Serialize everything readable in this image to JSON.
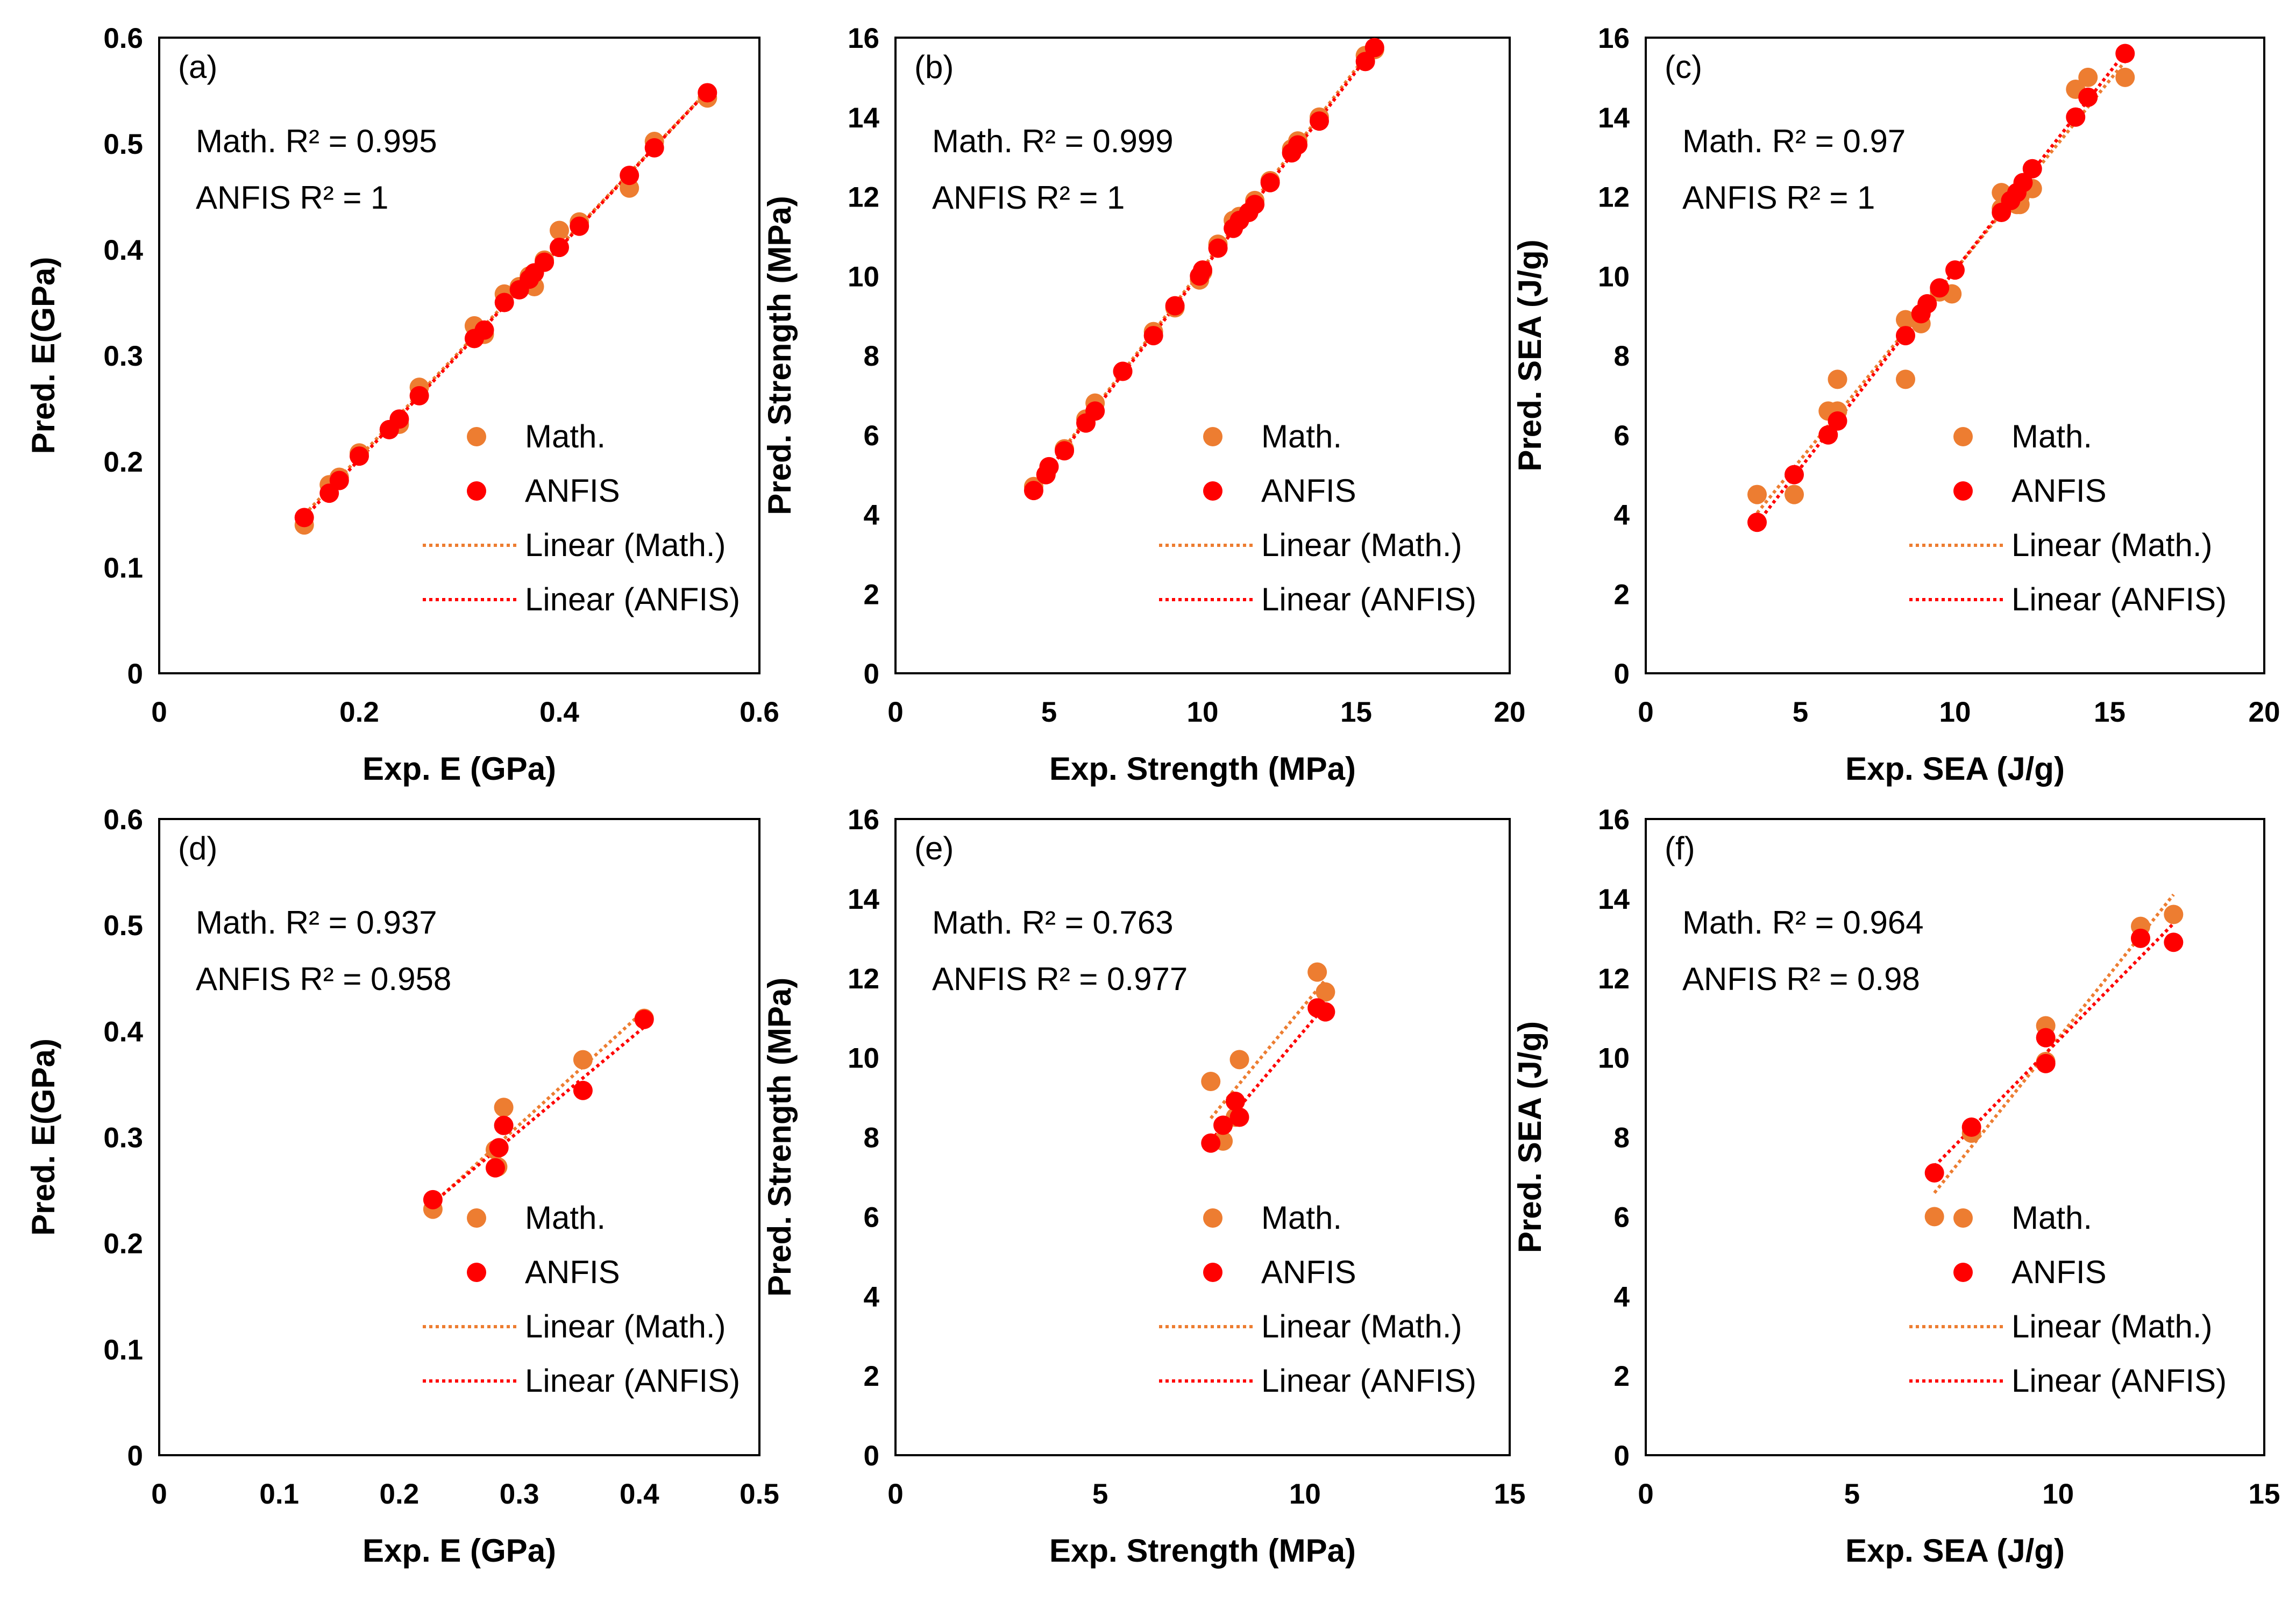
{
  "colors": {
    "math": "#ED7D31",
    "anfis": "#FF0000",
    "trend_math": "#ED7D31",
    "trend_anfis": "#FF0000"
  },
  "chart_data": [
    {
      "panel": "(a)",
      "type": "scatter",
      "xlabel": "Exp. E (GPa)",
      "ylabel": "Pred. E(GPa)",
      "xlim": [
        0,
        0.6
      ],
      "ylim": [
        0,
        0.6
      ],
      "xticks": [
        "0",
        "0.2",
        "0.4",
        "0.6"
      ],
      "yticks": [
        "0",
        "0.1",
        "0.2",
        "0.3",
        "0.4",
        "0.5",
        "0.6"
      ],
      "annotations": [
        "Math. R² = 0.995",
        "ANFIS R² = 1"
      ],
      "legend": [
        "Math.",
        "ANFIS",
        "Linear (Math.)",
        "Linear (ANFIS)"
      ],
      "series": [
        {
          "name": "Math.",
          "points": [
            [
              0.145,
              0.14
            ],
            [
              0.17,
              0.178
            ],
            [
              0.18,
              0.185
            ],
            [
              0.2,
              0.208
            ],
            [
              0.23,
              0.23
            ],
            [
              0.24,
              0.235
            ],
            [
              0.26,
              0.27
            ],
            [
              0.315,
              0.328
            ],
            [
              0.325,
              0.32
            ],
            [
              0.345,
              0.358
            ],
            [
              0.36,
              0.365
            ],
            [
              0.37,
              0.375
            ],
            [
              0.375,
              0.365
            ],
            [
              0.385,
              0.39
            ],
            [
              0.4,
              0.418
            ],
            [
              0.42,
              0.426
            ],
            [
              0.47,
              0.458
            ],
            [
              0.495,
              0.502
            ],
            [
              0.548,
              0.543
            ]
          ]
        },
        {
          "name": "ANFIS",
          "points": [
            [
              0.145,
              0.147
            ],
            [
              0.17,
              0.17
            ],
            [
              0.18,
              0.182
            ],
            [
              0.2,
              0.205
            ],
            [
              0.23,
              0.23
            ],
            [
              0.24,
              0.24
            ],
            [
              0.26,
              0.262
            ],
            [
              0.315,
              0.316
            ],
            [
              0.325,
              0.324
            ],
            [
              0.345,
              0.35
            ],
            [
              0.36,
              0.362
            ],
            [
              0.37,
              0.372
            ],
            [
              0.375,
              0.378
            ],
            [
              0.385,
              0.388
            ],
            [
              0.4,
              0.402
            ],
            [
              0.42,
              0.422
            ],
            [
              0.47,
              0.47
            ],
            [
              0.495,
              0.496
            ],
            [
              0.548,
              0.548
            ]
          ]
        }
      ]
    },
    {
      "panel": "(b)",
      "type": "scatter",
      "xlabel": "Exp. Strength (MPa)",
      "ylabel": "Pred. Strength (MPa)",
      "xlim": [
        0,
        20
      ],
      "ylim": [
        0,
        16
      ],
      "xticks": [
        "0",
        "5",
        "10",
        "15",
        "20"
      ],
      "yticks": [
        "0",
        "2",
        "4",
        "6",
        "8",
        "10",
        "12",
        "14",
        "16"
      ],
      "annotations": [
        "Math. R² = 0.999",
        "ANFIS R² = 1"
      ],
      "legend": [
        "Math.",
        "ANFIS",
        "Linear (Math.)",
        "Linear (ANFIS)"
      ],
      "series": [
        {
          "name": "Math.",
          "points": [
            [
              4.5,
              4.7
            ],
            [
              4.9,
              5
            ],
            [
              5.0,
              5.2
            ],
            [
              5.5,
              5.65
            ],
            [
              6.2,
              6.4
            ],
            [
              6.5,
              6.8
            ],
            [
              7.4,
              7.6
            ],
            [
              8.4,
              8.6
            ],
            [
              9.1,
              9.2
            ],
            [
              9.9,
              9.9
            ],
            [
              10.0,
              10.1
            ],
            [
              10.5,
              10.8
            ],
            [
              11.0,
              11.4
            ],
            [
              11.2,
              11.5
            ],
            [
              11.5,
              11.6
            ],
            [
              11.7,
              11.9
            ],
            [
              12.2,
              12.4
            ],
            [
              12.9,
              13.2
            ],
            [
              13.1,
              13.4
            ],
            [
              13.8,
              14.0
            ],
            [
              15.3,
              15.55
            ],
            [
              15.6,
              15.7
            ]
          ]
        },
        {
          "name": "ANFIS",
          "points": [
            [
              4.5,
              4.6
            ],
            [
              4.9,
              5
            ],
            [
              5.0,
              5.2
            ],
            [
              5.5,
              5.6
            ],
            [
              6.2,
              6.3
            ],
            [
              6.5,
              6.6
            ],
            [
              7.4,
              7.6
            ],
            [
              8.4,
              8.5
            ],
            [
              9.1,
              9.25
            ],
            [
              9.9,
              10.0
            ],
            [
              10.0,
              10.15
            ],
            [
              10.5,
              10.7
            ],
            [
              11.0,
              11.2
            ],
            [
              11.2,
              11.4
            ],
            [
              11.5,
              11.6
            ],
            [
              11.7,
              11.8
            ],
            [
              12.2,
              12.35
            ],
            [
              12.9,
              13.1
            ],
            [
              13.1,
              13.3
            ],
            [
              13.8,
              13.9
            ],
            [
              15.3,
              15.4
            ],
            [
              15.6,
              15.75
            ]
          ]
        }
      ]
    },
    {
      "panel": "(c)",
      "type": "scatter",
      "xlabel": "Exp. SEA (J/g)",
      "ylabel": "Pred. SEA (J/g)",
      "xlim": [
        0,
        20
      ],
      "ylim": [
        0,
        16
      ],
      "xticks": [
        "0",
        "5",
        "10",
        "15",
        "20"
      ],
      "yticks": [
        "0",
        "2",
        "4",
        "6",
        "8",
        "10",
        "12",
        "14",
        "16"
      ],
      "annotations": [
        "Math. R² = 0.97",
        "ANFIS R² = 1"
      ],
      "legend": [
        "Math.",
        "ANFIS",
        "Linear (Math.)",
        "Linear (ANFIS)"
      ],
      "series": [
        {
          "name": "Math.",
          "points": [
            [
              3.6,
              4.5
            ],
            [
              4.8,
              4.5
            ],
            [
              5.9,
              6.6
            ],
            [
              6.2,
              7.4
            ],
            [
              6.2,
              6.6
            ],
            [
              8.4,
              7.4
            ],
            [
              8.4,
              8.9
            ],
            [
              8.9,
              8.8
            ],
            [
              9.1,
              9.3
            ],
            [
              9.5,
              9.6
            ],
            [
              9.9,
              9.55
            ],
            [
              11.5,
              12.1
            ],
            [
              11.5,
              11.7
            ],
            [
              12.0,
              11.8
            ],
            [
              12.1,
              11.8
            ],
            [
              12.5,
              12.2
            ],
            [
              12.1,
              12.0
            ],
            [
              13.9,
              14.7
            ],
            [
              14.3,
              15.0
            ],
            [
              15.5,
              15.0
            ]
          ]
        },
        {
          "name": "ANFIS",
          "points": [
            [
              3.6,
              3.8
            ],
            [
              4.8,
              5.0
            ],
            [
              5.9,
              6.0
            ],
            [
              6.2,
              6.35
            ],
            [
              8.4,
              8.5
            ],
            [
              8.9,
              9.05
            ],
            [
              9.1,
              9.3
            ],
            [
              9.5,
              9.7
            ],
            [
              10.0,
              10.15
            ],
            [
              11.5,
              11.6
            ],
            [
              11.8,
              11.9
            ],
            [
              12.0,
              12.1
            ],
            [
              12.2,
              12.35
            ],
            [
              12.5,
              12.7
            ],
            [
              13.9,
              14.0
            ],
            [
              14.3,
              14.5
            ],
            [
              15.5,
              15.6
            ]
          ]
        }
      ]
    },
    {
      "panel": "(d)",
      "type": "scatter",
      "xlabel": "Exp. E (GPa)",
      "ylabel": "Pred. E(GPa)",
      "xlim": [
        0,
        0.5
      ],
      "ylim": [
        0,
        0.6
      ],
      "xticks": [
        "0",
        "0.1",
        "0.2",
        "0.3",
        "0.4",
        "0.5"
      ],
      "yticks": [
        "0",
        "0.1",
        "0.2",
        "0.3",
        "0.4",
        "0.5",
        "0.6"
      ],
      "annotations": [
        "Math. R² = 0.937",
        "ANFIS R² = 0.958"
      ],
      "legend": [
        "Math.",
        "ANFIS",
        "Linear (Math.)",
        "Linear (ANFIS)"
      ],
      "series": [
        {
          "name": "Math.",
          "points": [
            [
              0.228,
              0.232
            ],
            [
              0.28,
              0.288
            ],
            [
              0.282,
              0.272
            ],
            [
              0.287,
              0.328
            ],
            [
              0.353,
              0.373
            ],
            [
              0.404,
              0.412
            ]
          ]
        },
        {
          "name": "ANFIS",
          "points": [
            [
              0.228,
              0.241
            ],
            [
              0.28,
              0.271
            ],
            [
              0.283,
              0.29
            ],
            [
              0.287,
              0.311
            ],
            [
              0.353,
              0.344
            ],
            [
              0.404,
              0.411
            ]
          ]
        }
      ]
    },
    {
      "panel": "(e)",
      "type": "scatter",
      "xlabel": "Exp. Strength (MPa)",
      "ylabel": "Pred. Strength (MPa)",
      "xlim": [
        0,
        15
      ],
      "ylim": [
        0,
        16
      ],
      "xticks": [
        "0",
        "5",
        "10",
        "15"
      ],
      "yticks": [
        "0",
        "2",
        "4",
        "6",
        "8",
        "10",
        "12",
        "14",
        "16"
      ],
      "annotations": [
        "Math. R² = 0.763",
        "ANFIS R² = 0.977"
      ],
      "legend": [
        "Math.",
        "ANFIS",
        "Linear (Math.)",
        "Linear (ANFIS)"
      ],
      "series": [
        {
          "name": "Math.",
          "points": [
            [
              7.7,
              9.4
            ],
            [
              8.0,
              7.9
            ],
            [
              8.3,
              8.5
            ],
            [
              8.4,
              9.95
            ],
            [
              10.3,
              12.15
            ],
            [
              10.5,
              11.65
            ]
          ]
        },
        {
          "name": "ANFIS",
          "points": [
            [
              7.7,
              7.85
            ],
            [
              8.0,
              8.3
            ],
            [
              8.3,
              8.9
            ],
            [
              8.4,
              8.5
            ],
            [
              10.3,
              11.25
            ],
            [
              10.5,
              11.15
            ]
          ]
        }
      ]
    },
    {
      "panel": "(f)",
      "type": "scatter",
      "xlabel": "Exp. SEA (J/g)",
      "ylabel": "Pred. SEA (J/g)",
      "xlim": [
        0,
        15
      ],
      "ylim": [
        0,
        16
      ],
      "xticks": [
        "0",
        "5",
        "10",
        "15"
      ],
      "yticks": [
        "0",
        "2",
        "4",
        "6",
        "8",
        "10",
        "12",
        "14",
        "16"
      ],
      "annotations": [
        "Math. R² = 0.964",
        "ANFIS R² = 0.98"
      ],
      "legend": [
        "Math.",
        "ANFIS",
        "Linear (Math.)",
        "Linear (ANFIS)"
      ],
      "series": [
        {
          "name": "Math.",
          "points": [
            [
              7.0,
              6.0
            ],
            [
              7.9,
              8.1
            ],
            [
              9.7,
              10.8
            ],
            [
              9.7,
              9.9
            ],
            [
              12.0,
              13.3
            ],
            [
              12.8,
              13.6
            ]
          ]
        },
        {
          "name": "ANFIS",
          "points": [
            [
              7.0,
              7.1
            ],
            [
              7.9,
              8.25
            ],
            [
              9.7,
              10.5
            ],
            [
              9.7,
              9.85
            ],
            [
              12.0,
              13.0
            ],
            [
              12.8,
              12.9
            ]
          ]
        }
      ]
    }
  ]
}
